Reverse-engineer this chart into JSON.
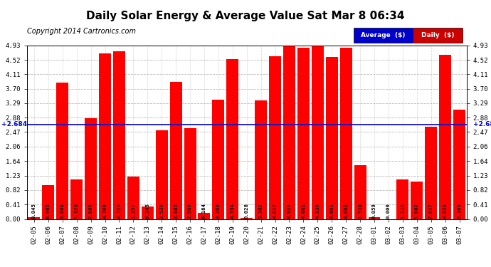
{
  "title": "Daily Solar Energy & Average Value Sat Mar 8 06:34",
  "copyright": "Copyright 2014 Cartronics.com",
  "categories": [
    "02-05",
    "02-06",
    "02-07",
    "02-08",
    "02-09",
    "02-10",
    "02-11",
    "02-12",
    "02-13",
    "02-14",
    "02-15",
    "02-16",
    "02-17",
    "02-18",
    "02-19",
    "02-20",
    "02-21",
    "02-22",
    "02-23",
    "02-24",
    "02-25",
    "02-26",
    "02-27",
    "02-28",
    "03-01",
    "03-02",
    "03-03",
    "03-04",
    "03-05",
    "03-06",
    "03-07"
  ],
  "values": [
    0.045,
    0.965,
    3.868,
    1.126,
    2.869,
    4.7,
    4.754,
    1.197,
    0.345,
    2.52,
    3.885,
    2.569,
    0.164,
    3.396,
    4.534,
    0.028,
    3.362,
    4.617,
    4.934,
    4.861,
    4.93,
    4.601,
    4.862,
    1.518,
    0.059,
    0.0,
    1.115,
    1.062,
    2.617,
    4.658,
    3.109
  ],
  "average": 2.684,
  "bar_color": "#ff0000",
  "average_line_color": "#0000cc",
  "background_color": "#ffffff",
  "grid_color": "#aaaaaa",
  "yticks": [
    0.0,
    0.41,
    0.82,
    1.23,
    1.64,
    2.06,
    2.47,
    2.88,
    3.29,
    3.7,
    4.11,
    4.52,
    4.93
  ],
  "ylim": [
    0,
    4.93
  ],
  "title_fontsize": 11,
  "copyright_fontsize": 7,
  "tick_fontsize": 6.5,
  "value_fontsize": 5.2,
  "legend_avg_color": "#0000cc",
  "legend_daily_color": "#cc0000"
}
